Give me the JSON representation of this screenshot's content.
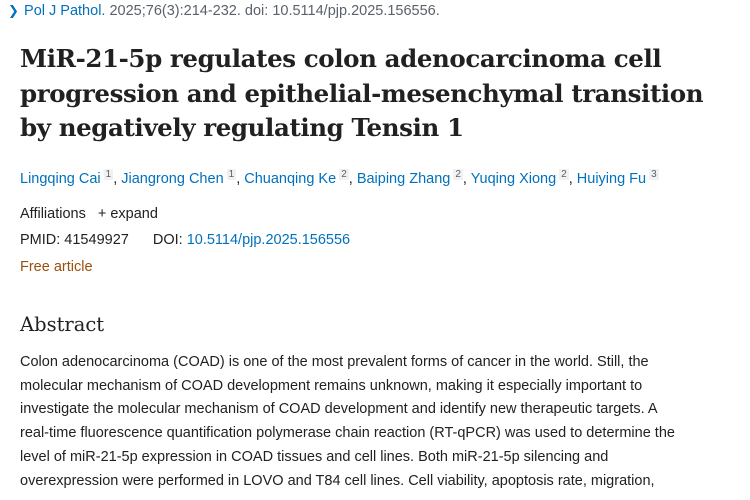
{
  "citation": {
    "journal": "Pol J Pathol.",
    "details": "2025;76(3):214-232. doi: 10.5114/pjp.2025.156556."
  },
  "title_lines": [
    "MiR-21-5p regulates colon adenocarcinoma cell",
    "progression and epithelial-mesenchymal transition",
    "by negatively regulating Tensin 1"
  ],
  "authors": [
    {
      "name": "Lingqing Cai",
      "aff": "1"
    },
    {
      "name": "Jiangrong Chen",
      "aff": "1"
    },
    {
      "name": "Chuanqing Ke",
      "aff": "2"
    },
    {
      "name": "Baiping Zhang",
      "aff": "2"
    },
    {
      "name": "Yuqing Xiong",
      "aff": "2"
    },
    {
      "name": "Huiying Fu",
      "aff": "3"
    }
  ],
  "affiliations": {
    "label": "Affiliations",
    "expand": "+ expand"
  },
  "ids": {
    "pmid": "PMID: 41549927",
    "doi_label": "DOI:",
    "doi": "10.5114/pjp.2025.156556"
  },
  "free_article": "Free article",
  "abstract": {
    "heading": "Abstract",
    "lines": [
      "Colon adenocarcinoma (COAD) is one of the most prevalent forms of cancer in the world. Still, the",
      "molecular mechanism of COAD development remains unknown, making it especially important to",
      "investigate the molecular mechanism of COAD development and identify new therapeutic targets. A",
      "real-time fluorescence quantification polymerase chain reaction (RT-qPCR) was used to determine the",
      "level of miR-21-5p expression in COAD tissues and cell lines. Both miR-21-5p silencing and",
      "overexpression were performed in LOVO and T84 cell lines. Cell viability, apoptosis rate, migration,"
    ]
  },
  "colors": {
    "link": "#0071bc",
    "free_article": "#9c4e0e",
    "text": "#212121"
  }
}
